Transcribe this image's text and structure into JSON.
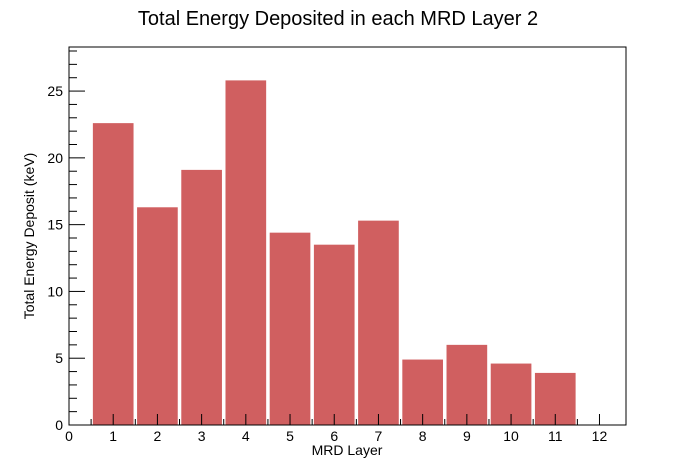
{
  "chart_data": {
    "type": "bar",
    "title": "Total Energy Deposited in each MRD Layer 2",
    "xlabel": "MRD Layer",
    "ylabel": "Total Energy Deposit (keV)",
    "categories": [
      "1",
      "2",
      "3",
      "4",
      "5",
      "6",
      "7",
      "8",
      "9",
      "10",
      "11",
      "12"
    ],
    "values": [
      22.6,
      16.3,
      19.1,
      25.8,
      14.4,
      13.5,
      15.3,
      4.9,
      6.0,
      4.6,
      3.9,
      0
    ],
    "x_ticks": [
      "0",
      "1",
      "2",
      "3",
      "4",
      "5",
      "6",
      "7",
      "8",
      "9",
      "10",
      "11",
      "12"
    ],
    "y_ticks": [
      "0",
      "5",
      "10",
      "15",
      "20",
      "25"
    ],
    "xlim": [
      0,
      12.6
    ],
    "ylim": [
      0,
      28.3
    ],
    "grid": false,
    "legend": "none",
    "bar_color": "#d05f60",
    "axis_color": "#000000",
    "background": "#ffffff"
  }
}
